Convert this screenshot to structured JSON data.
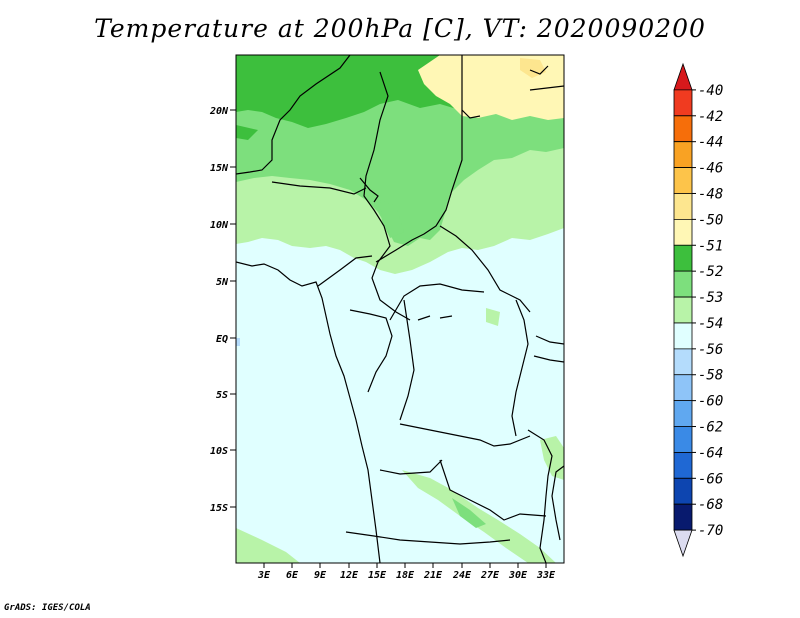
{
  "title": "Temperature at 200hPa [C], VT: 2020090200",
  "credit": "GrADS: IGES/COLA",
  "lat_labels": [
    "20N",
    "15N",
    "10N",
    "5N",
    "EQ",
    "5S",
    "10S",
    "15S"
  ],
  "lon_labels": [
    "3E",
    "6E",
    "9E",
    "12E",
    "15E",
    "18E",
    "21E",
    "24E",
    "27E",
    "30E",
    "33E"
  ],
  "colorbar": {
    "labels": [
      "-40",
      "-42",
      "-44",
      "-46",
      "-48",
      "-50",
      "-51",
      "-52",
      "-53",
      "-54",
      "-56",
      "-58",
      "-60",
      "-62",
      "-64",
      "-66",
      "-68",
      "-70"
    ],
    "colors": [
      "#d7191c",
      "#f03b20",
      "#f66e0a",
      "#f9a223",
      "#fdc44a",
      "#fde68f",
      "#fff7b5",
      "#3dbf3d",
      "#7ddf7d",
      "#b8f3a8",
      "#e0ffff",
      "#b4dcfc",
      "#8ec4f8",
      "#60a8f0",
      "#3a8ae6",
      "#1f68d4",
      "#0d45b0",
      "#081a6e",
      "#dcdcf0"
    ]
  }
}
